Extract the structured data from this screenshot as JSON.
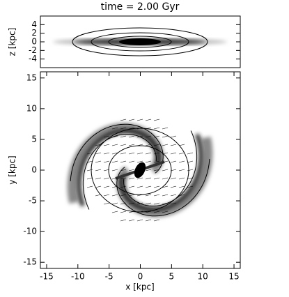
{
  "chart_data": [
    {
      "type": "image",
      "title": "time =  2.00 Gyr",
      "ylabel": "z [kpc]",
      "xlim": [
        -16,
        16
      ],
      "ylim": [
        -6,
        6
      ],
      "yticks": [
        -4,
        -2,
        0,
        2,
        4
      ]
    },
    {
      "type": "image",
      "xlabel": "x [kpc]",
      "ylabel": "y [kpc]",
      "xlim": [
        -16,
        16
      ],
      "ylim": [
        -16,
        16
      ],
      "xticks": [
        -15,
        -10,
        -5,
        0,
        5,
        10,
        15
      ],
      "yticks": [
        -15,
        -10,
        -5,
        0,
        5,
        10,
        15
      ]
    }
  ]
}
